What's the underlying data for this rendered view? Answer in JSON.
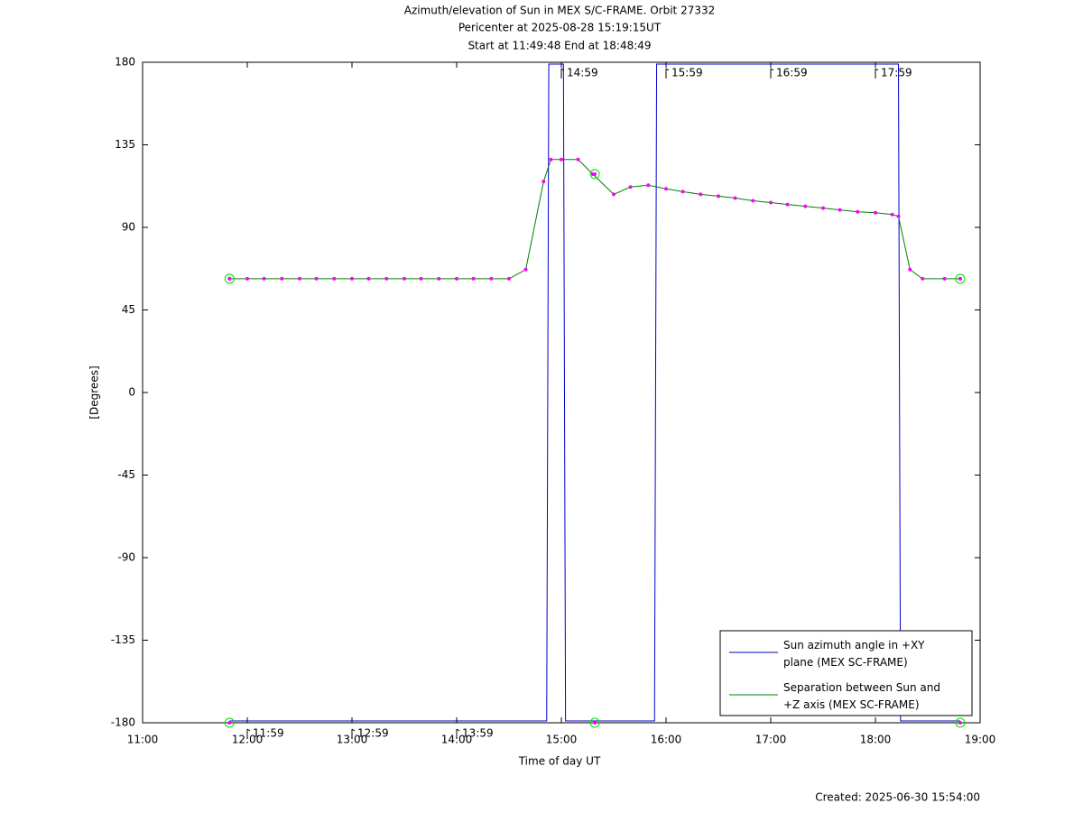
{
  "chart_data": {
    "type": "line",
    "title": [
      "Azimuth/elevation of Sun in MEX S/C-FRAME.  Orbit 27332",
      "Pericenter at 2025-08-28 15:19:15UT",
      "Start at 11:49:48 End at 18:48:49"
    ],
    "xlabel": "Time of day UT",
    "ylabel": "[Degrees]",
    "footer": "Created: 2025-06-30 15:54:00",
    "xlim": [
      11,
      19
    ],
    "xticks": [
      {
        "value": 11,
        "label": "11:00"
      },
      {
        "value": 12,
        "label": "12:00"
      },
      {
        "value": 13,
        "label": "13:00"
      },
      {
        "value": 14,
        "label": "14:00"
      },
      {
        "value": 15,
        "label": "15:00"
      },
      {
        "value": 16,
        "label": "16:00"
      },
      {
        "value": 17,
        "label": "17:00"
      },
      {
        "value": 18,
        "label": "18:00"
      },
      {
        "value": 19,
        "label": "19:00"
      }
    ],
    "ylim": [
      -180,
      180
    ],
    "yticks": [
      180,
      135,
      90,
      45,
      0,
      -45,
      -90,
      -135,
      -180
    ],
    "grid": false,
    "legend": "lower right",
    "series": [
      {
        "name": "Sun azimuth angle in +XY plane (MEX SC-FRAME)",
        "color": "#0000cc",
        "x": [
          11.83,
          14.86,
          14.88,
          15.02,
          15.04,
          15.89,
          15.91,
          18.22,
          18.24,
          18.81
        ],
        "values": [
          -179,
          -179,
          179,
          179,
          -179,
          -179,
          179,
          179,
          -179,
          -179
        ]
      },
      {
        "name": "Separation between Sun and +Z axis (MEX SC-FRAME)",
        "color": "#008000",
        "marker_color": "#ff00ff",
        "x": [
          11.83,
          12.0,
          12.16,
          12.33,
          12.5,
          12.66,
          12.83,
          13.0,
          13.16,
          13.33,
          13.5,
          13.66,
          13.83,
          14.0,
          14.16,
          14.33,
          14.5,
          14.66,
          14.83,
          14.9,
          15.0,
          15.16,
          15.3,
          15.5,
          15.66,
          15.83,
          16.0,
          16.16,
          16.33,
          16.5,
          16.66,
          16.83,
          17.0,
          17.16,
          17.33,
          17.5,
          17.66,
          17.83,
          18.0,
          18.16,
          18.22,
          18.33,
          18.45,
          18.66,
          18.81
        ],
        "values": [
          62,
          62,
          62,
          62,
          62,
          62,
          62,
          62,
          62,
          62,
          62,
          62,
          62,
          62,
          62,
          62,
          62,
          67,
          115,
          127,
          127,
          127,
          119,
          108,
          112,
          113,
          111,
          109.5,
          108,
          107,
          106,
          104.5,
          103.5,
          102.5,
          101.5,
          100.5,
          99.5,
          98.5,
          98,
          97,
          96,
          67,
          62,
          62,
          62
        ]
      }
    ],
    "circles": [
      {
        "x": 11.83,
        "y": 62
      },
      {
        "x": 15.32,
        "y": 119
      },
      {
        "x": 18.81,
        "y": 62
      },
      {
        "x": 11.83,
        "y": -180
      },
      {
        "x": 15.32,
        "y": -180
      },
      {
        "x": 18.81,
        "y": -180
      }
    ],
    "annotations": [
      {
        "x": 15.0,
        "y": 180,
        "text": "14:59"
      },
      {
        "x": 16.0,
        "y": 180,
        "text": "15:59"
      },
      {
        "x": 17.0,
        "y": 180,
        "text": "16:59"
      },
      {
        "x": 18.0,
        "y": 180,
        "text": "17:59"
      },
      {
        "x": 12.0,
        "y": -180,
        "text": "11:59"
      },
      {
        "x": 13.0,
        "y": -180,
        "text": "12:59"
      },
      {
        "x": 14.0,
        "y": -180,
        "text": "13:59"
      }
    ]
  }
}
